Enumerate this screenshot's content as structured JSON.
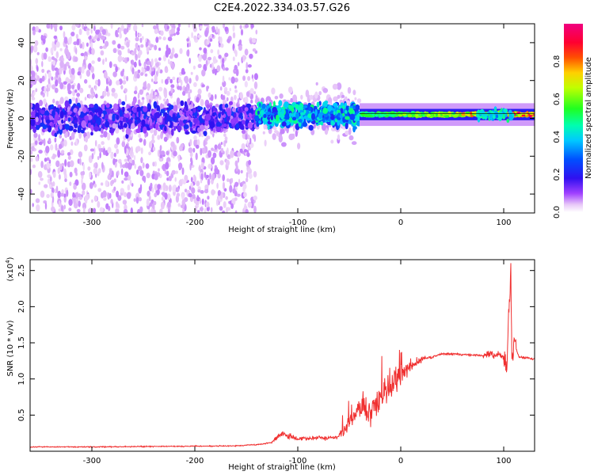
{
  "title": "C2E4.2022.334.03.57.G26",
  "chart_data": [
    {
      "type": "heatmap",
      "xlabel": "Height of straight line (km)",
      "ylabel": "Frequency (Hz)",
      "xlim": [
        -360,
        130
      ],
      "ylim": [
        -50,
        50
      ],
      "xticks": [
        -300,
        -200,
        -100,
        0,
        100
      ],
      "yticks": [
        -40,
        -20,
        0,
        20,
        40
      ],
      "colorbar": {
        "label": "Normalized spectral amplitude",
        "range": [
          0.0,
          1.0
        ],
        "ticks": [
          "0.0",
          "0.2",
          "0.4",
          "0.6",
          "0.8"
        ],
        "colormap": "white-purple-blue-cyan-green-yellow-red-magenta"
      },
      "features": [
        {
          "x_range": [
            -360,
            -140
          ],
          "freq_center": 0,
          "noise_band_hz": 50,
          "core_band_hz": 8,
          "amplitude_range": [
            0.05,
            0.25
          ]
        },
        {
          "x_range": [
            -140,
            -40
          ],
          "freq_center": 2,
          "core_band_hz": 8,
          "amplitude_range": [
            0.2,
            0.5
          ]
        },
        {
          "x_range": [
            -40,
            130
          ],
          "freq_center": 2,
          "core_band_hz": 2,
          "amplitude_range": [
            0.4,
            0.9
          ]
        },
        {
          "x_range": [
            75,
            110
          ],
          "freq_center": 2,
          "core_band_hz": 4,
          "amplitude_range": [
            0.3,
            0.5
          ]
        }
      ]
    },
    {
      "type": "line",
      "xlabel": "Height of straight line (km)",
      "ylabel": "SNR (10 * v/v)",
      "yscale_label": "(x10",
      "yscale_exp": "4",
      "yscale_close": ")",
      "xlim": [
        -360,
        130
      ],
      "ylim": [
        0,
        26500
      ],
      "xticks": [
        -300,
        -200,
        -100,
        0,
        100
      ],
      "yticks": [
        5000,
        10000,
        15000,
        20000,
        25000
      ],
      "ytick_labels": [
        "0.5",
        "1.0",
        "1.5",
        "2.0",
        "2.5"
      ],
      "color": "#f03030",
      "series": [
        {
          "x": [
            -360,
            -300,
            -250,
            -200,
            -160,
            -140,
            -125,
            -120,
            -115,
            -110,
            -100,
            -90,
            -80,
            -70,
            -60,
            -55,
            -50,
            -45,
            -40,
            -35,
            -30,
            -25,
            -20,
            -15,
            -10,
            -5,
            0,
            5,
            10,
            15,
            20,
            30,
            40,
            60,
            80,
            85,
            90,
            95,
            100,
            103,
            105,
            107,
            108,
            110,
            115,
            130
          ],
          "y": [
            600,
            600,
            650,
            700,
            750,
            900,
            1200,
            2000,
            2500,
            2200,
            1800,
            1800,
            1900,
            1800,
            2000,
            2800,
            4000,
            5000,
            6000,
            5500,
            5000,
            6500,
            7000,
            8000,
            8500,
            9500,
            10500,
            11000,
            11800,
            12300,
            12700,
            13000,
            13500,
            13400,
            13200,
            13500,
            13300,
            13500,
            13100,
            12000,
            20000,
            25000,
            12500,
            15000,
            13000,
            12800
          ]
        }
      ]
    }
  ]
}
